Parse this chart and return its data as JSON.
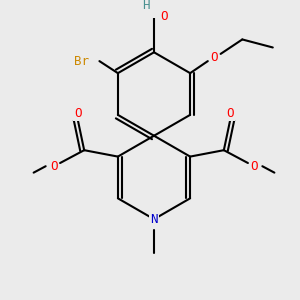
{
  "background_color": "#ebebeb",
  "figsize": [
    3.0,
    3.0
  ],
  "dpi": 100,
  "bond_color": "#000000",
  "bond_lw": 1.5,
  "colors": {
    "O": "#ff0000",
    "N": "#0000cc",
    "Br": "#cc8800",
    "H_label": "#4a9090",
    "C": "#000000"
  },
  "font_size": 9
}
